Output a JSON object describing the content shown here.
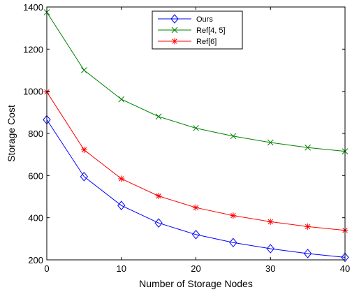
{
  "chart_data": {
    "type": "line",
    "title": "",
    "xlabel": "Number of Storage Nodes",
    "ylabel": "Storage Cost",
    "xlim": [
      0,
      40
    ],
    "ylim": [
      200,
      1400
    ],
    "xticks": [
      0,
      10,
      20,
      30,
      40
    ],
    "yticks": [
      200,
      400,
      600,
      800,
      1000,
      1200,
      1400
    ],
    "grid": false,
    "legend_position": "top-center",
    "x": [
      0,
      5,
      10,
      15,
      20,
      25,
      30,
      35,
      40
    ],
    "series": [
      {
        "name": "Ours",
        "color": "#0000ff",
        "marker": "diamond",
        "values": [
          865,
          595,
          458,
          375,
          320,
          282,
          253,
          230,
          212
        ]
      },
      {
        "name": "Ref[4, 5]",
        "color": "#008000",
        "marker": "x",
        "values": [
          1375,
          1100,
          962,
          880,
          825,
          787,
          757,
          733,
          715
        ]
      },
      {
        "name": "Ref[6]",
        "color": "#ff0000",
        "marker": "star",
        "values": [
          997,
          722,
          585,
          503,
          448,
          410,
          381,
          358,
          340
        ]
      }
    ]
  }
}
